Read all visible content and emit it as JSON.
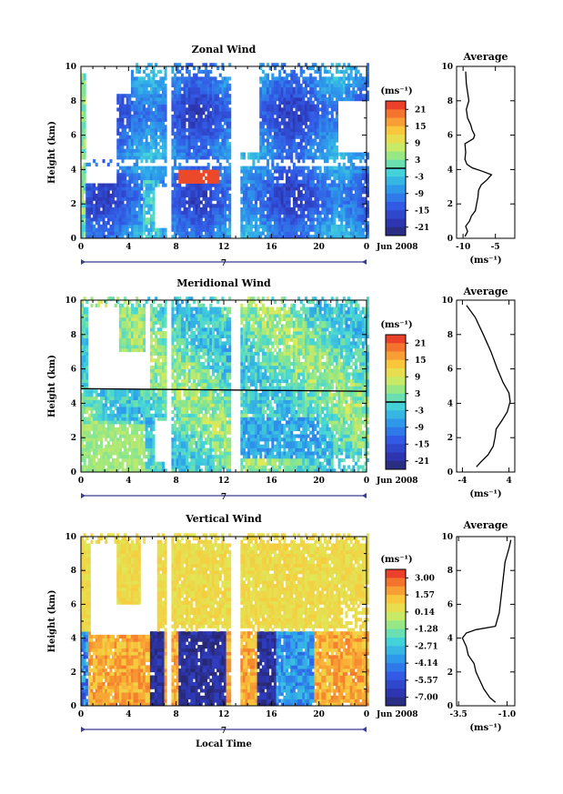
{
  "chart_data": [
    {
      "type": "heatmap",
      "title": "Zonal Wind",
      "ylabel": "Height (km)",
      "xlabel": "",
      "x_ticks": [
        "0",
        "4",
        "8",
        "12",
        "16",
        "20",
        "0"
      ],
      "y_ticks": [
        "0",
        "2",
        "4",
        "6",
        "8",
        "10"
      ],
      "xlim": [
        0,
        24
      ],
      "ylim": [
        0,
        10
      ],
      "day_label": "7",
      "date_label": "Jun 2008",
      "colorbar": {
        "unit": "(ms⁻¹)",
        "ticks": [
          "21",
          "15",
          "9",
          "3",
          "-3",
          "-9",
          "-15",
          "-21"
        ],
        "range": [
          -24,
          24
        ],
        "highlight_line": 0
      },
      "average": {
        "title": "Average",
        "xlabel": "(ms⁻¹)",
        "x_ticks": [
          "-10",
          "-5"
        ],
        "xlim": [
          -11,
          -2
        ],
        "y_ticks": [
          "0",
          "2",
          "4",
          "6",
          "8",
          "10"
        ],
        "ylim": [
          0,
          10
        ],
        "profile": [
          [
            -9.7,
            0.1
          ],
          [
            -9.3,
            0.4
          ],
          [
            -9.6,
            0.7
          ],
          [
            -9.0,
            1.0
          ],
          [
            -8.7,
            1.3
          ],
          [
            -8.1,
            1.6
          ],
          [
            -7.9,
            2.0
          ],
          [
            -7.7,
            2.4
          ],
          [
            -7.6,
            2.8
          ],
          [
            -7.2,
            3.1
          ],
          [
            -6.3,
            3.4
          ],
          [
            -5.6,
            3.7
          ],
          [
            -7.0,
            3.9
          ],
          [
            -8.6,
            4.1
          ],
          [
            -9.4,
            4.3
          ],
          [
            -9.7,
            4.6
          ],
          [
            -9.6,
            5.0
          ],
          [
            -9.7,
            5.5
          ],
          [
            -8.4,
            5.8
          ],
          [
            -8.2,
            6.0
          ],
          [
            -8.6,
            6.3
          ],
          [
            -8.8,
            6.6
          ],
          [
            -9.3,
            7.0
          ],
          [
            -9.5,
            7.5
          ],
          [
            -9.1,
            8.0
          ],
          [
            -9.3,
            8.5
          ],
          [
            -9.5,
            9.0
          ],
          [
            -9.6,
            9.7
          ]
        ]
      }
    },
    {
      "type": "heatmap",
      "title": "Meridional Wind",
      "ylabel": "Height (km)",
      "xlabel": "",
      "x_ticks": [
        "0",
        "4",
        "8",
        "12",
        "16",
        "20",
        "0"
      ],
      "y_ticks": [
        "0",
        "2",
        "4",
        "6",
        "8",
        "10"
      ],
      "xlim": [
        0,
        24
      ],
      "ylim": [
        0,
        10
      ],
      "day_label": "7",
      "date_label": "Jun 2008",
      "colorbar": {
        "unit": "(ms⁻¹)",
        "ticks": [
          "21",
          "15",
          "9",
          "3",
          "-3",
          "-9",
          "-15",
          "-21"
        ],
        "range": [
          -24,
          24
        ],
        "highlight_line": 0
      },
      "average": {
        "title": "Average",
        "xlabel": "(ms⁻¹)",
        "x_ticks": [
          "-4",
          "4"
        ],
        "xlim": [
          -5,
          5
        ],
        "y_ticks": [
          "0",
          "2",
          "4",
          "6",
          "8",
          "10"
        ],
        "ylim": [
          0,
          10
        ],
        "profile": [
          [
            -1.6,
            0.3
          ],
          [
            -0.8,
            0.6
          ],
          [
            0.4,
            1.0
          ],
          [
            1.3,
            1.5
          ],
          [
            1.6,
            2.0
          ],
          [
            1.8,
            2.5
          ],
          [
            2.8,
            3.0
          ],
          [
            3.7,
            3.5
          ],
          [
            4.2,
            4.1
          ],
          [
            4.0,
            4.6
          ],
          [
            3.0,
            5.2
          ],
          [
            2.0,
            6.0
          ],
          [
            0.9,
            7.0
          ],
          [
            -0.4,
            8.0
          ],
          [
            -1.8,
            9.0
          ],
          [
            -3.3,
            9.7
          ]
        ]
      }
    },
    {
      "type": "heatmap",
      "title": "Vertical Wind",
      "ylabel": "Height (km)",
      "xlabel": "Local Time",
      "x_ticks": [
        "0",
        "4",
        "8",
        "12",
        "16",
        "20",
        "0"
      ],
      "y_ticks": [
        "0",
        "2",
        "4",
        "6",
        "8",
        "10"
      ],
      "xlim": [
        0,
        24
      ],
      "ylim": [
        0,
        10
      ],
      "day_label": "7",
      "date_label": "Jun 2008",
      "colorbar": {
        "unit": "(ms⁻¹)",
        "ticks": [
          "3.00",
          "1.57",
          "0.14",
          "-1.28",
          "-2.71",
          "-4.14",
          "-5.57",
          "-7.00"
        ],
        "range": [
          -7.0,
          3.0
        ]
      },
      "average": {
        "title": "Average",
        "xlabel": "(ms⁻¹)",
        "x_ticks": [
          "-3.5",
          "-1.0"
        ],
        "xlim": [
          -3.6,
          -0.6
        ],
        "y_ticks": [
          "0",
          "2",
          "4",
          "6",
          "8",
          "10"
        ],
        "ylim": [
          0,
          10
        ],
        "profile": [
          [
            -1.6,
            0.2
          ],
          [
            -1.9,
            0.5
          ],
          [
            -2.2,
            1.0
          ],
          [
            -2.4,
            1.5
          ],
          [
            -2.6,
            2.0
          ],
          [
            -2.7,
            2.5
          ],
          [
            -3.0,
            3.0
          ],
          [
            -3.1,
            3.5
          ],
          [
            -3.3,
            4.0
          ],
          [
            -3.1,
            4.3
          ],
          [
            -2.6,
            4.5
          ],
          [
            -1.6,
            4.7
          ],
          [
            -1.4,
            5.5
          ],
          [
            -1.3,
            6.5
          ],
          [
            -1.2,
            7.5
          ],
          [
            -1.1,
            8.5
          ],
          [
            -0.9,
            9.3
          ],
          [
            -0.8,
            9.8
          ]
        ]
      }
    }
  ]
}
